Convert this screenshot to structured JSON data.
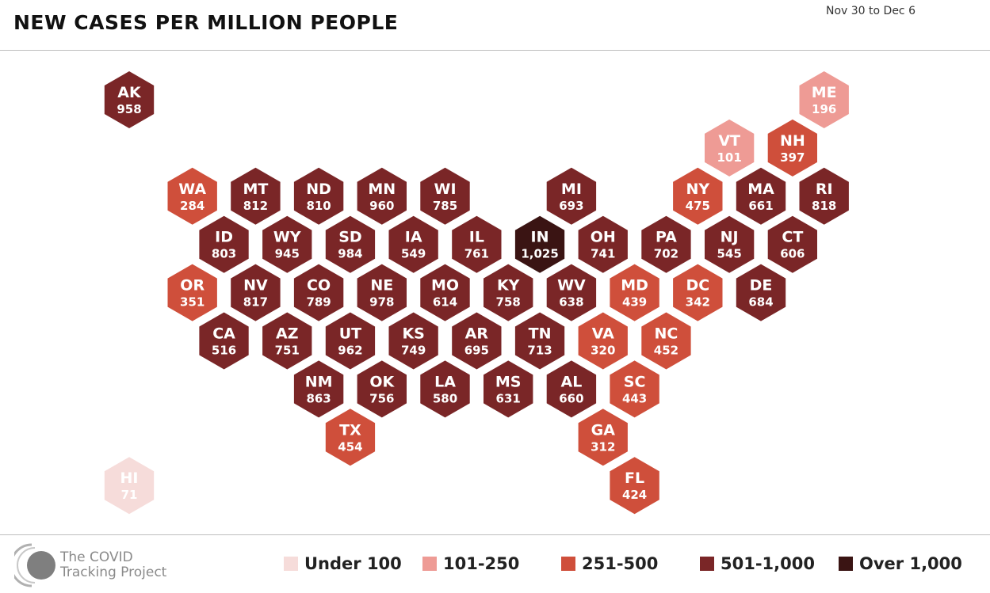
{
  "header": {
    "title": "NEW CASES PER MILLION PEOPLE",
    "date_range": "Nov 30 to Dec 6"
  },
  "colors": {
    "under_100": "#f6dcda",
    "101_250": "#ee9b95",
    "251_500": "#cf4f3b",
    "501_1000": "#7a2627",
    "over_1000": "#3a1413",
    "text_dark_bg": "#ffffff"
  },
  "chart_data": {
    "type": "hex tile map",
    "title": "NEW CASES PER MILLION PEOPLE",
    "states": [
      {
        "abbr": "AK",
        "value": 958,
        "label": "958",
        "bin": "501_1000",
        "col": 0,
        "row": 0
      },
      {
        "abbr": "ME",
        "value": 196,
        "label": "196",
        "bin": "101_250",
        "col": 11,
        "row": 0
      },
      {
        "abbr": "VT",
        "value": 101,
        "label": "101",
        "bin": "101_250",
        "col": 9.5,
        "row": 1
      },
      {
        "abbr": "NH",
        "value": 397,
        "label": "397",
        "bin": "251_500",
        "col": 10.5,
        "row": 1
      },
      {
        "abbr": "WA",
        "value": 284,
        "label": "284",
        "bin": "251_500",
        "col": 1,
        "row": 2
      },
      {
        "abbr": "MT",
        "value": 812,
        "label": "812",
        "bin": "501_1000",
        "col": 2,
        "row": 2
      },
      {
        "abbr": "ND",
        "value": 810,
        "label": "810",
        "bin": "501_1000",
        "col": 3,
        "row": 2
      },
      {
        "abbr": "MN",
        "value": 960,
        "label": "960",
        "bin": "501_1000",
        "col": 4,
        "row": 2
      },
      {
        "abbr": "WI",
        "value": 785,
        "label": "785",
        "bin": "501_1000",
        "col": 5,
        "row": 2
      },
      {
        "abbr": "MI",
        "value": 693,
        "label": "693",
        "bin": "501_1000",
        "col": 7,
        "row": 2
      },
      {
        "abbr": "NY",
        "value": 475,
        "label": "475",
        "bin": "251_500",
        "col": 9,
        "row": 2
      },
      {
        "abbr": "MA",
        "value": 661,
        "label": "661",
        "bin": "501_1000",
        "col": 10,
        "row": 2
      },
      {
        "abbr": "RI",
        "value": 818,
        "label": "818",
        "bin": "501_1000",
        "col": 11,
        "row": 2
      },
      {
        "abbr": "ID",
        "value": 803,
        "label": "803",
        "bin": "501_1000",
        "col": 1.5,
        "row": 3
      },
      {
        "abbr": "WY",
        "value": 945,
        "label": "945",
        "bin": "501_1000",
        "col": 2.5,
        "row": 3
      },
      {
        "abbr": "SD",
        "value": 984,
        "label": "984",
        "bin": "501_1000",
        "col": 3.5,
        "row": 3
      },
      {
        "abbr": "IA",
        "value": 549,
        "label": "549",
        "bin": "501_1000",
        "col": 4.5,
        "row": 3
      },
      {
        "abbr": "IL",
        "value": 761,
        "label": "761",
        "bin": "501_1000",
        "col": 5.5,
        "row": 3
      },
      {
        "abbr": "IN",
        "value": 1025,
        "label": "1,025",
        "bin": "over_1000",
        "col": 6.5,
        "row": 3
      },
      {
        "abbr": "OH",
        "value": 741,
        "label": "741",
        "bin": "501_1000",
        "col": 7.5,
        "row": 3
      },
      {
        "abbr": "PA",
        "value": 702,
        "label": "702",
        "bin": "501_1000",
        "col": 8.5,
        "row": 3
      },
      {
        "abbr": "NJ",
        "value": 545,
        "label": "545",
        "bin": "501_1000",
        "col": 9.5,
        "row": 3
      },
      {
        "abbr": "CT",
        "value": 606,
        "label": "606",
        "bin": "501_1000",
        "col": 10.5,
        "row": 3
      },
      {
        "abbr": "OR",
        "value": 351,
        "label": "351",
        "bin": "251_500",
        "col": 1,
        "row": 4
      },
      {
        "abbr": "NV",
        "value": 817,
        "label": "817",
        "bin": "501_1000",
        "col": 2,
        "row": 4
      },
      {
        "abbr": "CO",
        "value": 789,
        "label": "789",
        "bin": "501_1000",
        "col": 3,
        "row": 4
      },
      {
        "abbr": "NE",
        "value": 978,
        "label": "978",
        "bin": "501_1000",
        "col": 4,
        "row": 4
      },
      {
        "abbr": "MO",
        "value": 614,
        "label": "614",
        "bin": "501_1000",
        "col": 5,
        "row": 4
      },
      {
        "abbr": "KY",
        "value": 758,
        "label": "758",
        "bin": "501_1000",
        "col": 6,
        "row": 4
      },
      {
        "abbr": "WV",
        "value": 638,
        "label": "638",
        "bin": "501_1000",
        "col": 7,
        "row": 4
      },
      {
        "abbr": "MD",
        "value": 439,
        "label": "439",
        "bin": "251_500",
        "col": 8,
        "row": 4
      },
      {
        "abbr": "DC",
        "value": 342,
        "label": "342",
        "bin": "251_500",
        "col": 9,
        "row": 4
      },
      {
        "abbr": "DE",
        "value": 684,
        "label": "684",
        "bin": "501_1000",
        "col": 10,
        "row": 4
      },
      {
        "abbr": "CA",
        "value": 516,
        "label": "516",
        "bin": "501_1000",
        "col": 1.5,
        "row": 5
      },
      {
        "abbr": "AZ",
        "value": 751,
        "label": "751",
        "bin": "501_1000",
        "col": 2.5,
        "row": 5
      },
      {
        "abbr": "UT",
        "value": 962,
        "label": "962",
        "bin": "501_1000",
        "col": 3.5,
        "row": 5
      },
      {
        "abbr": "KS",
        "value": 749,
        "label": "749",
        "bin": "501_1000",
        "col": 4.5,
        "row": 5
      },
      {
        "abbr": "AR",
        "value": 695,
        "label": "695",
        "bin": "501_1000",
        "col": 5.5,
        "row": 5
      },
      {
        "abbr": "TN",
        "value": 713,
        "label": "713",
        "bin": "501_1000",
        "col": 6.5,
        "row": 5
      },
      {
        "abbr": "VA",
        "value": 320,
        "label": "320",
        "bin": "251_500",
        "col": 7.5,
        "row": 5
      },
      {
        "abbr": "NC",
        "value": 452,
        "label": "452",
        "bin": "251_500",
        "col": 8.5,
        "row": 5
      },
      {
        "abbr": "NM",
        "value": 863,
        "label": "863",
        "bin": "501_1000",
        "col": 3,
        "row": 6
      },
      {
        "abbr": "OK",
        "value": 756,
        "label": "756",
        "bin": "501_1000",
        "col": 4,
        "row": 6
      },
      {
        "abbr": "LA",
        "value": 580,
        "label": "580",
        "bin": "501_1000",
        "col": 5,
        "row": 6
      },
      {
        "abbr": "MS",
        "value": 631,
        "label": "631",
        "bin": "501_1000",
        "col": 6,
        "row": 6
      },
      {
        "abbr": "AL",
        "value": 660,
        "label": "660",
        "bin": "501_1000",
        "col": 7,
        "row": 6
      },
      {
        "abbr": "SC",
        "value": 443,
        "label": "443",
        "bin": "251_500",
        "col": 8,
        "row": 6
      },
      {
        "abbr": "TX",
        "value": 454,
        "label": "454",
        "bin": "251_500",
        "col": 3.5,
        "row": 7
      },
      {
        "abbr": "GA",
        "value": 312,
        "label": "312",
        "bin": "251_500",
        "col": 7.5,
        "row": 7
      },
      {
        "abbr": "HI",
        "value": 71,
        "label": "71",
        "bin": "under_100",
        "col": 0,
        "row": 8
      },
      {
        "abbr": "FL",
        "value": 424,
        "label": "424",
        "bin": "251_500",
        "col": 8,
        "row": 8
      }
    ],
    "legend": [
      {
        "key": "under_100",
        "label": "Under 100"
      },
      {
        "key": "101_250",
        "label": "101-250"
      },
      {
        "key": "251_500",
        "label": "251-500"
      },
      {
        "key": "501_1000",
        "label": "501-1,000"
      },
      {
        "key": "over_1000",
        "label": "Over 1,000"
      }
    ],
    "legend_position": "bottom"
  },
  "footer": {
    "logo_line1": "The COVID",
    "logo_line2": "Tracking Project",
    "logo_icon": "covid-tracking-project-logo-icon"
  }
}
